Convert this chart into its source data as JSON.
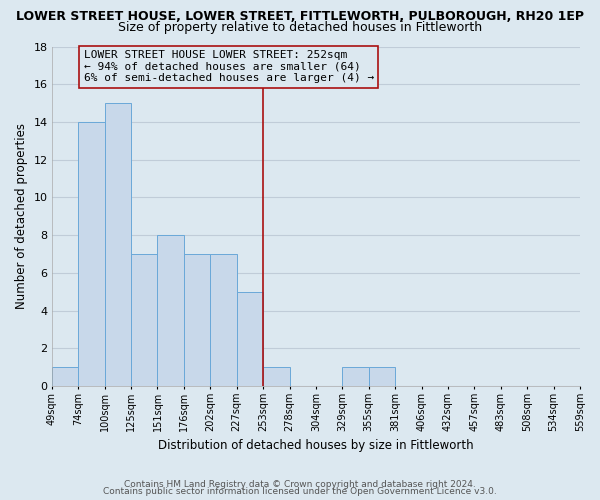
{
  "title": "LOWER STREET HOUSE, LOWER STREET, FITTLEWORTH, PULBOROUGH, RH20 1EP",
  "subtitle": "Size of property relative to detached houses in Fittleworth",
  "xlabel": "Distribution of detached houses by size in Fittleworth",
  "ylabel": "Number of detached properties",
  "bar_indices": [
    0,
    1,
    2,
    3,
    4,
    5,
    6,
    7,
    8,
    9,
    10,
    11,
    12,
    13,
    14,
    15,
    16,
    17,
    18,
    19
  ],
  "bar_heights": [
    1,
    14,
    15,
    7,
    8,
    7,
    7,
    5,
    1,
    0,
    0,
    1,
    1,
    0,
    0,
    0,
    0,
    0,
    0,
    0
  ],
  "bar_color": "#c8d8ea",
  "bar_edgecolor": "#6aa8d8",
  "vline_bar": 8,
  "vline_color": "#aa1111",
  "annotation_text": "LOWER STREET HOUSE LOWER STREET: 252sqm\n← 94% of detached houses are smaller (64)\n6% of semi-detached houses are larger (4) →",
  "annotation_box_edgecolor": "#aa1111",
  "ylim": [
    0,
    18
  ],
  "yticks": [
    0,
    2,
    4,
    6,
    8,
    10,
    12,
    14,
    16,
    18
  ],
  "tick_labels": [
    "49sqm",
    "74sqm",
    "100sqm",
    "125sqm",
    "151sqm",
    "176sqm",
    "202sqm",
    "227sqm",
    "253sqm",
    "278sqm",
    "304sqm",
    "329sqm",
    "355sqm",
    "381sqm",
    "406sqm",
    "432sqm",
    "457sqm",
    "483sqm",
    "508sqm",
    "534sqm",
    "559sqm"
  ],
  "footer1": "Contains HM Land Registry data © Crown copyright and database right 2024.",
  "footer2": "Contains public sector information licensed under the Open Government Licence v3.0.",
  "background_color": "#dce8f0",
  "plot_bg_color": "#dce8f0",
  "grid_color": "#c0ccd8",
  "title_fontsize": 9,
  "subtitle_fontsize": 9,
  "annotation_fontsize": 8,
  "footer_fontsize": 6.5
}
